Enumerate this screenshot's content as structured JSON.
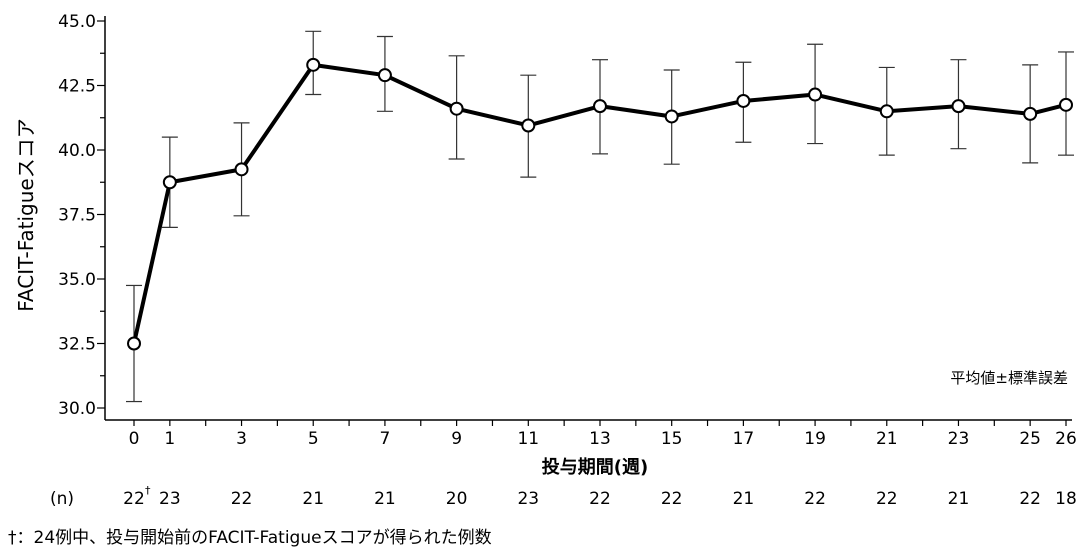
{
  "chart_data": {
    "type": "line",
    "title": "",
    "xlabel": "投与期間(週)",
    "ylabel": "FACIT-Fatigueスコア",
    "ylim": [
      30.0,
      45.0
    ],
    "yticks": [
      "30.0",
      "32.5",
      "35.0",
      "37.5",
      "40.0",
      "42.5",
      "45.0"
    ],
    "x": [
      0,
      1,
      3,
      5,
      7,
      9,
      11,
      13,
      15,
      17,
      19,
      21,
      23,
      25,
      26
    ],
    "x_tick_labels": [
      "0",
      "1",
      "3",
      "5",
      "7",
      "9",
      "11",
      "13",
      "15",
      "17",
      "19",
      "21",
      "23",
      "25",
      "26"
    ],
    "series": [
      {
        "values": [
          32.5,
          38.75,
          39.25,
          43.3,
          42.9,
          41.6,
          40.95,
          41.7,
          41.3,
          41.9,
          42.15,
          41.5,
          41.7,
          41.4,
          41.75
        ],
        "error_low": [
          30.25,
          37.0,
          37.45,
          42.15,
          41.5,
          39.65,
          38.95,
          39.85,
          39.45,
          40.3,
          40.25,
          39.8,
          40.05,
          39.5,
          39.8
        ],
        "error_high": [
          34.75,
          40.5,
          41.05,
          44.6,
          44.4,
          43.65,
          42.9,
          43.5,
          43.1,
          43.4,
          44.1,
          43.2,
          43.5,
          43.3,
          43.8
        ]
      }
    ],
    "n_label": "(n)",
    "n_values": [
      "22",
      "23",
      "22",
      "21",
      "21",
      "20",
      "23",
      "22",
      "22",
      "21",
      "22",
      "22",
      "21",
      "22",
      "18"
    ],
    "n_dagger": "†",
    "annotation": "平均値±標準誤差",
    "grid": false,
    "line_color": "#000000",
    "marker_fill": "#ffffff"
  },
  "footnote": "†：24例中、投与開始前のFACIT-Fatigueスコアが得られた例数"
}
